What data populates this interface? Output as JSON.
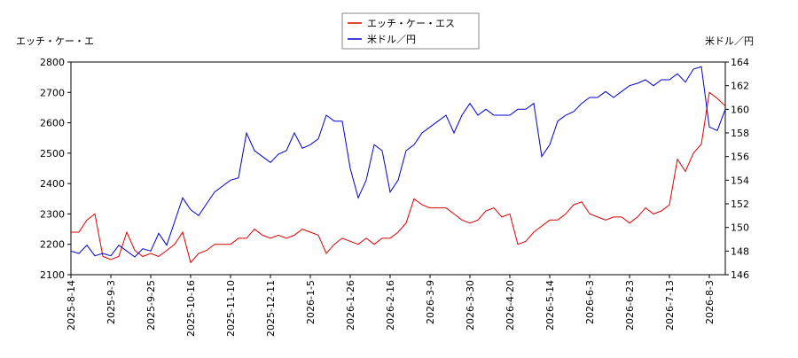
{
  "chart_data": {
    "type": "line",
    "y_label": "エッチ・ケー・エ",
    "y2_label": "米ドル／円",
    "categories": [
      "2025-8-14",
      null,
      null,
      null,
      null,
      "2025-9-3",
      null,
      null,
      null,
      null,
      "2025-9-25",
      null,
      null,
      null,
      null,
      "2025-10-16",
      null,
      null,
      null,
      null,
      "2025-11-10",
      null,
      null,
      null,
      null,
      "2025-12-11",
      null,
      null,
      null,
      null,
      "2026-1-5",
      null,
      null,
      null,
      null,
      "2026-1-26",
      null,
      null,
      null,
      null,
      "2026-2-16",
      null,
      null,
      null,
      null,
      "2026-3-9",
      null,
      null,
      null,
      null,
      "2026-3-30",
      null,
      null,
      null,
      null,
      "2026-4-20",
      null,
      null,
      null,
      null,
      "2026-5-14",
      null,
      null,
      null,
      null,
      "2026-6-3",
      null,
      null,
      null,
      null,
      "2026-6-23",
      null,
      null,
      null,
      null,
      "2026-7-13",
      null,
      null,
      null,
      null,
      "2026-8-3",
      null,
      null
    ],
    "series": [
      {
        "name": "エッチ・ケー・エス",
        "color": "#dd0000",
        "axis": "y",
        "values": [
          2240,
          2240,
          2280,
          2300,
          2160,
          2150,
          2160,
          2240,
          2180,
          2160,
          2170,
          2160,
          2180,
          2200,
          2240,
          2140,
          2170,
          2180,
          2200,
          2200,
          2200,
          2220,
          2220,
          2250,
          2230,
          2220,
          2230,
          2220,
          2230,
          2250,
          2240,
          2230,
          2170,
          2200,
          2220,
          2210,
          2200,
          2220,
          2200,
          2220,
          2220,
          2240,
          2270,
          2350,
          2330,
          2320,
          2320,
          2320,
          2300,
          2280,
          2270,
          2280,
          2310,
          2320,
          2290,
          2300,
          2200,
          2210,
          2240,
          2260,
          2280,
          2280,
          2300,
          2330,
          2340,
          2300,
          2290,
          2280,
          2290,
          2290,
          2270,
          2290,
          2320,
          2300,
          2310,
          2330,
          2480,
          2440,
          2500,
          2530,
          2700,
          2680,
          2655
        ]
      },
      {
        "name": "米ドル／円",
        "color": "#0000cc",
        "axis": "y2",
        "values": [
          148,
          147.8,
          148.5,
          147.6,
          147.8,
          147.6,
          148.5,
          148,
          147.5,
          148.2,
          148,
          149.5,
          148.5,
          150.5,
          152.5,
          151.5,
          151,
          152,
          153,
          153.5,
          154,
          154.2,
          158,
          156.5,
          156,
          155.5,
          156.2,
          156.5,
          158,
          156.7,
          157,
          157.5,
          159.5,
          159,
          159,
          155,
          152.5,
          154,
          157,
          156.5,
          153,
          154,
          156.5,
          157,
          158,
          158.5,
          159,
          159.5,
          158,
          159.5,
          160.5,
          159.5,
          160,
          159.5,
          159.5,
          159.5,
          160,
          160,
          160.5,
          156,
          157,
          159,
          159.5,
          159.8,
          160.5,
          161,
          161,
          161.5,
          161,
          161.5,
          162,
          162.2,
          162.5,
          162,
          162.5,
          162.5,
          163,
          162.3,
          163.4,
          163.6,
          158.5,
          158.2,
          160
        ]
      }
    ],
    "ylim": [
      2100,
      2800
    ],
    "yticks": [
      2100,
      2200,
      2300,
      2400,
      2500,
      2600,
      2700,
      2800
    ],
    "y2lim": [
      146,
      164
    ],
    "y2ticks": [
      146,
      148,
      150,
      152,
      154,
      156,
      158,
      160,
      162,
      164
    ],
    "legend": "top"
  }
}
